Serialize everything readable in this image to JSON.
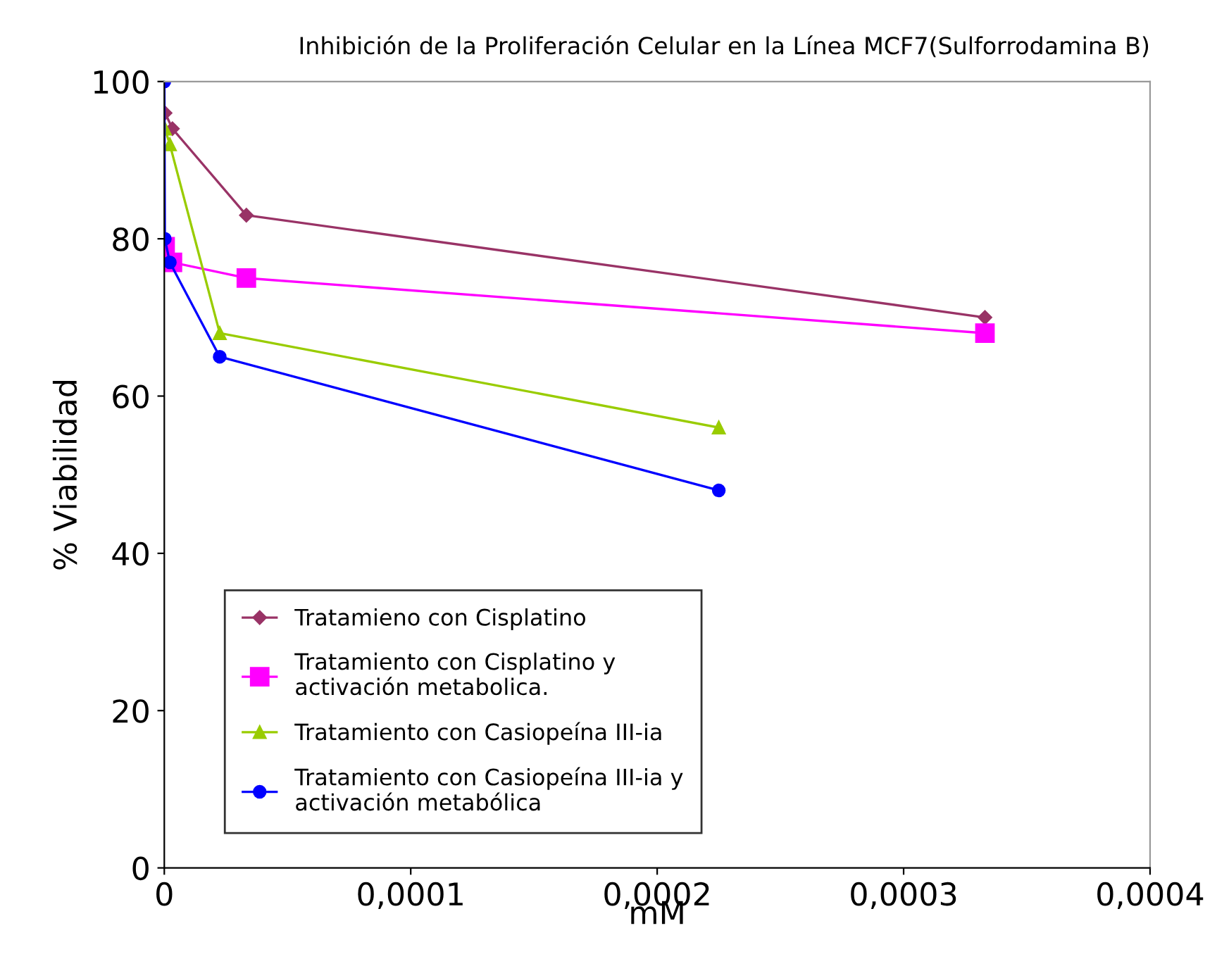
{
  "chart_data": {
    "type": "line",
    "title": "Inhibición de la Proliferación Celular en la Línea MCF7(Sulforrodamina B)",
    "xlabel": "mM",
    "ylabel": "% Viabilidad",
    "series": [
      {
        "name": "Tratamieno con Cisplatino",
        "color": "#993366",
        "marker": "diamond",
        "x": [
          3.3e-07,
          3.3e-06,
          3.33e-05,
          0.000333
        ],
        "values": [
          96,
          94,
          83,
          70
        ]
      },
      {
        "name": "Tratamiento con Cisplatino y activación metabolica.",
        "color": "#ff00ff",
        "marker": "square",
        "x": [
          3.3e-07,
          3.3e-06,
          3.33e-05,
          0.000333
        ],
        "values": [
          79,
          77,
          75,
          68
        ]
      },
      {
        "name": "Tratamiento con Casiopeína III-ia",
        "color": "#99cc00",
        "marker": "triangle",
        "x": [
          2.25e-07,
          2.25e-06,
          2.25e-05,
          0.000225
        ],
        "values": [
          94,
          92,
          68,
          56
        ]
      },
      {
        "name": "Tratamiento con Casiopeína III-ia y activación metabólica",
        "color": "#0000ff",
        "marker": "circle",
        "x": [
          2.25e-08,
          2.25e-07,
          2.25e-06,
          2.25e-05,
          0.000225
        ],
        "values": [
          100,
          80,
          77,
          65,
          48
        ]
      }
    ],
    "xlim": [
      0,
      0.0004
    ],
    "xticks": [
      0,
      {
        "value": 0.0001,
        "label": "0,0001"
      },
      {
        "value": 0.0002,
        "label": "0,0002"
      },
      {
        "value": 0.0003,
        "label": "0,0003"
      },
      {
        "value": 0.0004,
        "label": "0,0004"
      }
    ],
    "ylim": [
      0,
      100
    ],
    "yticks": [
      0,
      20,
      40,
      60,
      80,
      100
    ],
    "legend": "bottom left",
    "grid": false
  }
}
